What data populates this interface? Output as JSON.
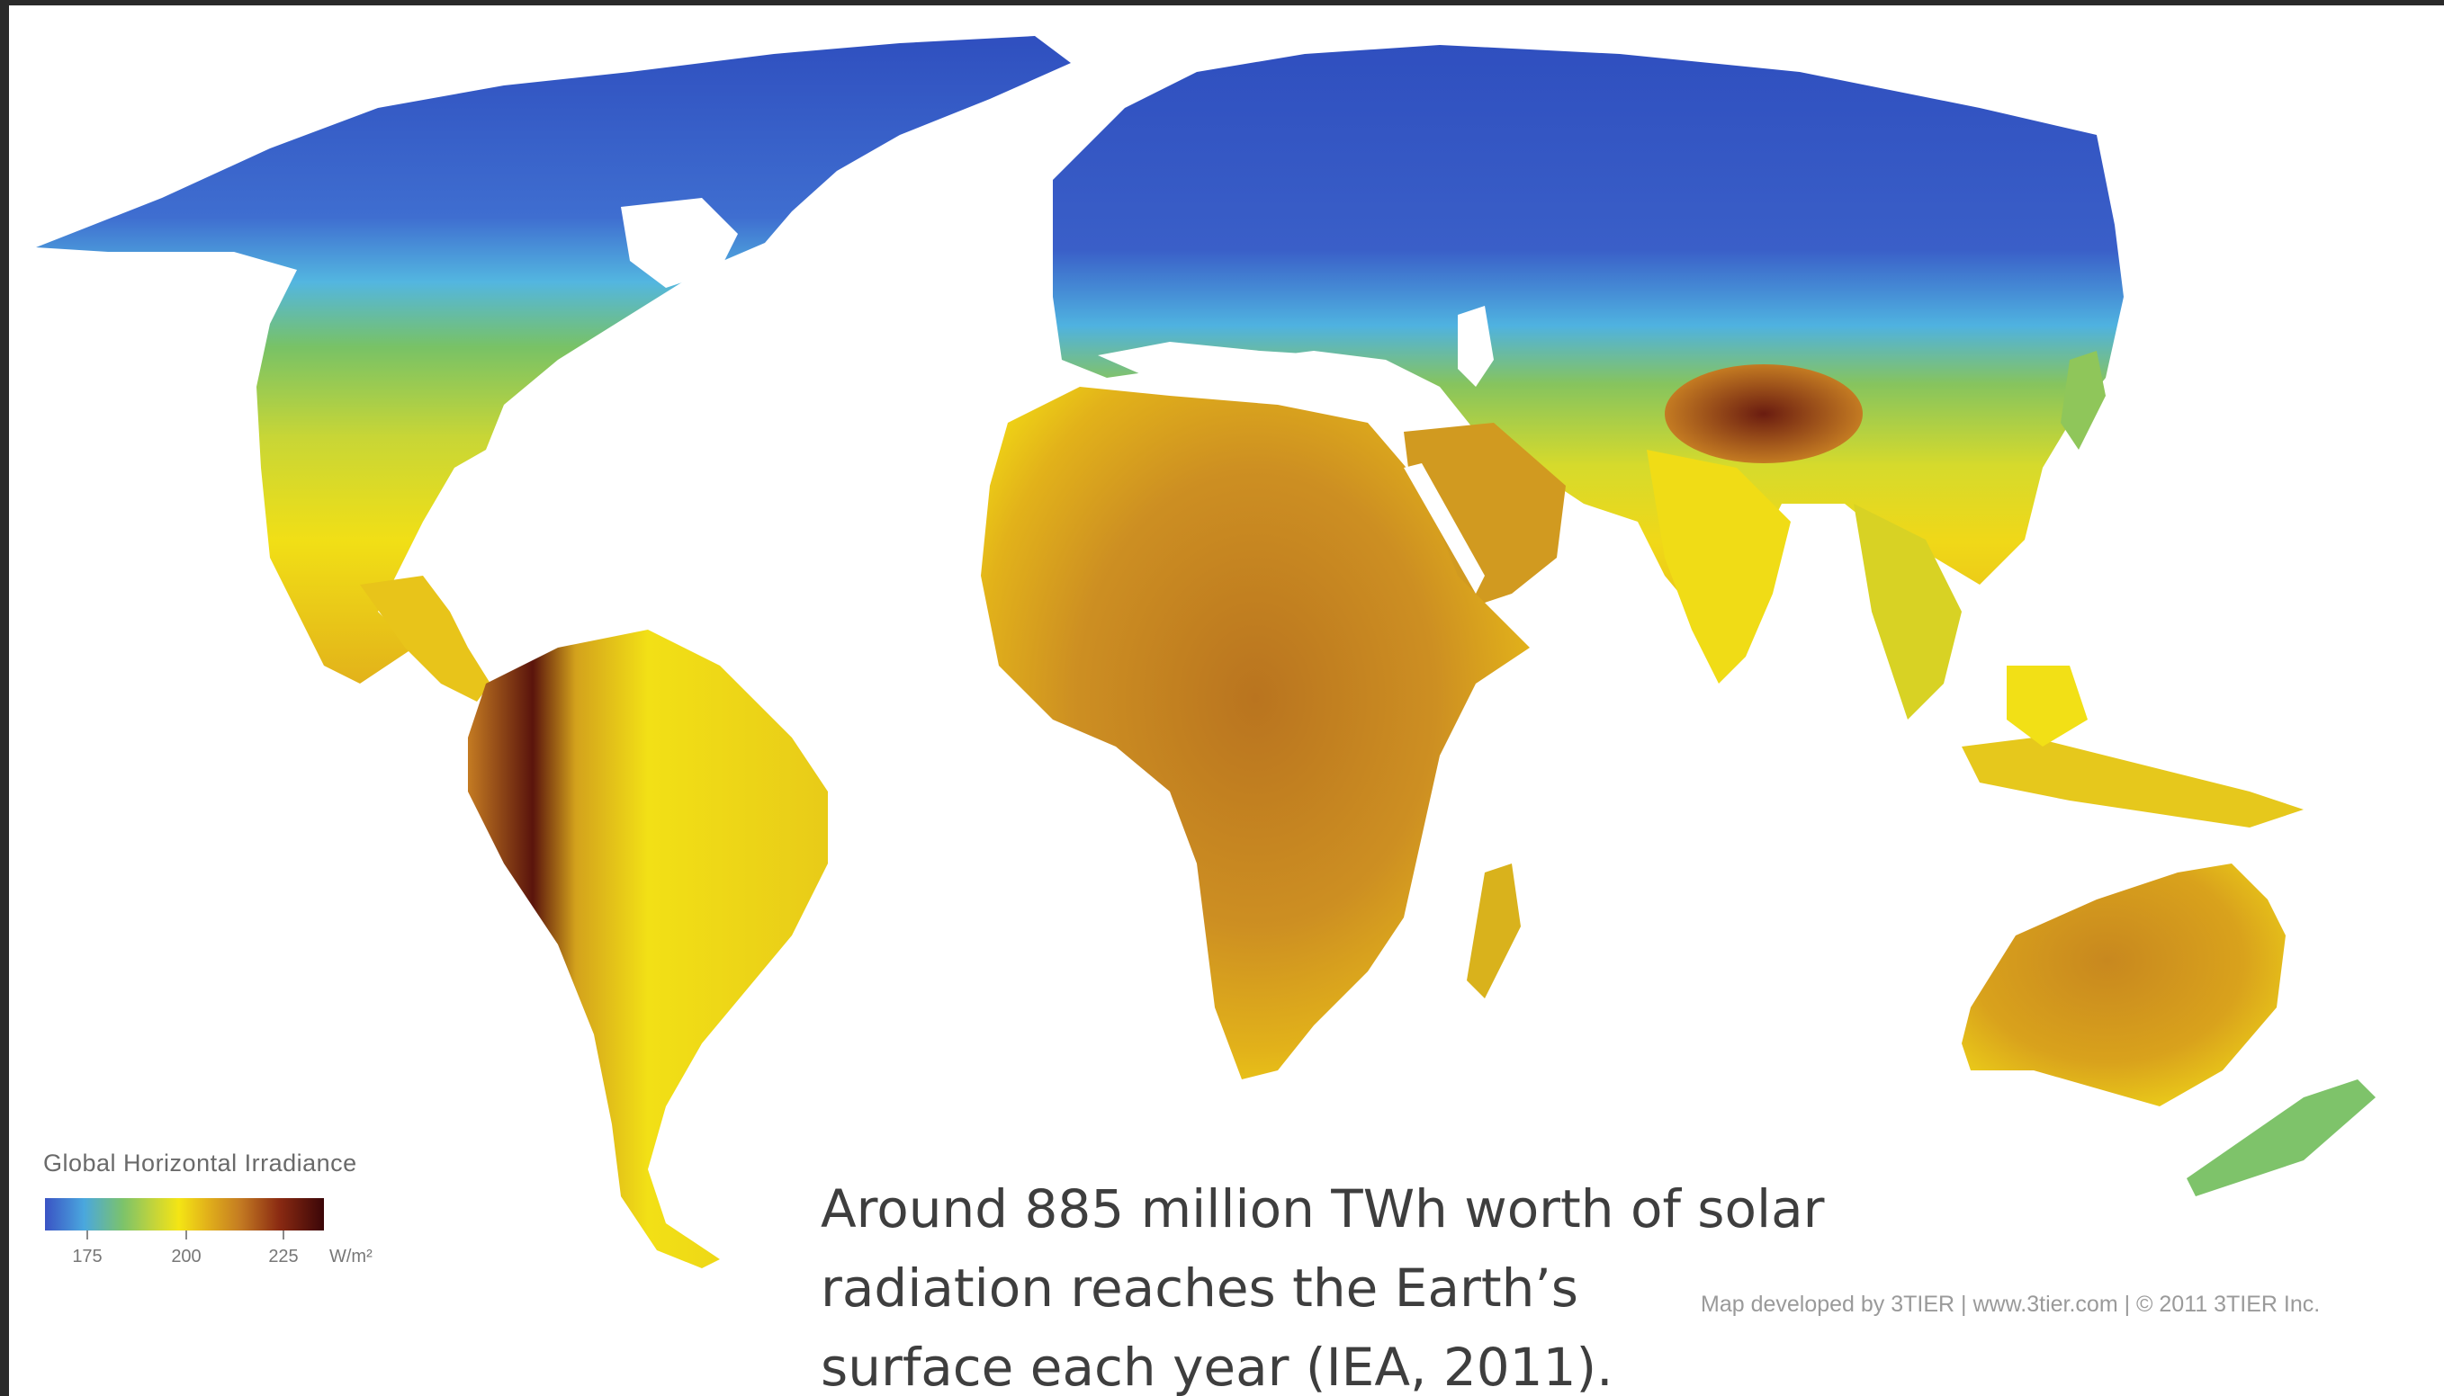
{
  "legend": {
    "title": "Global Horizontal Irradiance",
    "ticks": [
      "175",
      "200",
      "225"
    ],
    "unit": "W/m²"
  },
  "caption": {
    "line1": "Around 885 million TWh worth of solar",
    "line2": "radiation reaches the Earth’s",
    "line3": "surface each year (IEA, 2011)."
  },
  "credit": "Map developed by 3TIER  |  www.3tier.com  |  © 2011 3TIER Inc.",
  "colors": {
    "low": "#3a53c4",
    "cool": "#4aa7de",
    "mid": "#7cc36a",
    "warm": "#f4e514",
    "hot": "#c47b22",
    "extreme": "#3b0608",
    "frame": "#2a2a2a"
  }
}
